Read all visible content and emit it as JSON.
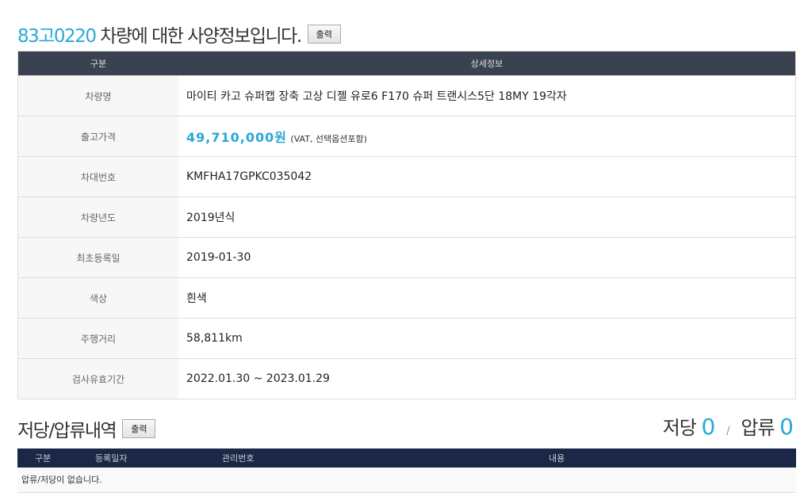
{
  "header": {
    "plate": "83고0220",
    "title_suffix": " 차량에 대한 사양정보입니다.",
    "print_label": "출력"
  },
  "spec": {
    "columns": [
      "구분",
      "상세정보"
    ],
    "rows": [
      {
        "label": "차량명",
        "value": "마이티 카고 슈퍼캡 장축 고상 디젤 유로6 F170 슈퍼 트랜시스5단 18MY 19각자"
      },
      {
        "label": "출고가격",
        "value": "49,710,000원",
        "note": "(VAT, 선택옵션포함)"
      },
      {
        "label": "차대번호",
        "value": "KMFHA17GPKC035042"
      },
      {
        "label": "차량년도",
        "value": "2019년식"
      },
      {
        "label": "최초등록일",
        "value": "2019-01-30"
      },
      {
        "label": "색상",
        "value": "흰색"
      },
      {
        "label": "주행거리",
        "value": "58,811km"
      },
      {
        "label": "검사유효기간",
        "value": "2022.01.30 ~ 2023.01.29"
      }
    ]
  },
  "lien": {
    "title": "저당/압류내역",
    "print_label": "출력",
    "mortgage_label": "저당",
    "mortgage_count": "0",
    "sep": "/",
    "seizure_label": "압류",
    "seizure_count": "0",
    "columns": [
      "구분",
      "등록일자",
      "관리번호",
      "내용"
    ],
    "empty_message": "압류/저당이 없습니다."
  },
  "colors": {
    "accent": "#29a8d8",
    "header_bg": "#3a4150",
    "lien_header_bg": "#1b2747"
  }
}
